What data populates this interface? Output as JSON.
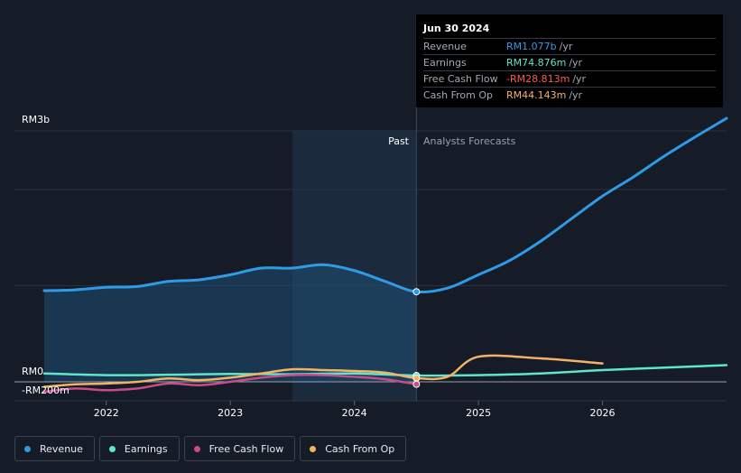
{
  "tooltip": {
    "date": "Jun 30 2024",
    "rows": [
      {
        "label": "Revenue",
        "value": "RM1.077b",
        "unit": "/yr",
        "color": "#2f9be6"
      },
      {
        "label": "Earnings",
        "value": "RM74.876m",
        "unit": "/yr",
        "color": "#5ee6c8"
      },
      {
        "label": "Free Cash Flow",
        "value": "-RM28.813m",
        "unit": "/yr",
        "color": "#ff5a4f"
      },
      {
        "label": "Cash From Op",
        "value": "RM44.143m",
        "unit": "/yr",
        "color": "#f2b366"
      }
    ]
  },
  "regions": {
    "past": "Past",
    "forecast": "Analysts Forecasts"
  },
  "legend": [
    {
      "label": "Revenue",
      "color": "#2f9be6"
    },
    {
      "label": "Earnings",
      "color": "#5ee6c8"
    },
    {
      "label": "Free Cash Flow",
      "color": "#c94b8a"
    },
    {
      "label": "Cash From Op",
      "color": "#f2b366"
    }
  ],
  "chart_data": {
    "type": "line",
    "unit": "RM billions",
    "y_axis_labels": {
      "top": "RM3b",
      "zero": "RM0",
      "bottom": "-RM200m"
    },
    "ylim": [
      -0.2,
      3.0
    ],
    "xlim": [
      2021.5,
      2027.0
    ],
    "x_ticks": [
      {
        "value": 2022.0,
        "label": "2022"
      },
      {
        "value": 2023.0,
        "label": "2023"
      },
      {
        "value": 2024.0,
        "label": "2024"
      },
      {
        "value": 2025.0,
        "label": "2025"
      },
      {
        "value": 2026.0,
        "label": "2026"
      }
    ],
    "grid_lines": [
      0,
      1.15,
      2.3,
      3.0
    ],
    "past_start": 2023.5,
    "forecast_start": 2024.5,
    "highlight_x": 2024.5,
    "series": [
      {
        "name": "Revenue",
        "color": "#2f9be6",
        "fill": true,
        "highlight_y": 1.077,
        "x": [
          2021.5,
          2021.75,
          2022.0,
          2022.25,
          2022.5,
          2022.75,
          2023.0,
          2023.25,
          2023.5,
          2023.75,
          2024.0,
          2024.25,
          2024.5,
          2024.75,
          2025.0,
          2025.25,
          2025.5,
          2025.75,
          2026.0,
          2026.25,
          2026.5,
          2026.75,
          2027.0
        ],
        "y": [
          1.09,
          1.1,
          1.13,
          1.14,
          1.2,
          1.22,
          1.28,
          1.36,
          1.36,
          1.4,
          1.33,
          1.2,
          1.077,
          1.12,
          1.28,
          1.45,
          1.68,
          1.95,
          2.22,
          2.45,
          2.7,
          2.93,
          3.15
        ]
      },
      {
        "name": "Earnings",
        "color": "#5ee6c8",
        "highlight_y": 0.075,
        "x": [
          2021.5,
          2022.0,
          2022.5,
          2023.0,
          2023.5,
          2024.0,
          2024.5,
          2025.0,
          2025.5,
          2026.0,
          2026.5,
          2027.0
        ],
        "y": [
          0.1,
          0.08,
          0.085,
          0.095,
          0.09,
          0.1,
          0.075,
          0.08,
          0.1,
          0.14,
          0.17,
          0.2
        ]
      },
      {
        "name": "Free Cash Flow",
        "color": "#c94b8a",
        "highlight_y": -0.029,
        "x": [
          2021.5,
          2021.75,
          2022.0,
          2022.25,
          2022.5,
          2022.75,
          2023.0,
          2023.25,
          2023.5,
          2023.75,
          2024.0,
          2024.25,
          2024.5
        ],
        "y": [
          -0.12,
          -0.08,
          -0.1,
          -0.08,
          -0.02,
          -0.04,
          0.0,
          0.05,
          0.08,
          0.08,
          0.06,
          0.03,
          -0.029
        ]
      },
      {
        "name": "Cash From Op",
        "color": "#f2b366",
        "highlight_y": 0.044,
        "x": [
          2021.5,
          2021.75,
          2022.0,
          2022.25,
          2022.5,
          2022.75,
          2023.0,
          2023.25,
          2023.5,
          2023.75,
          2024.0,
          2024.25,
          2024.5,
          2024.75,
          2025.0,
          2025.5,
          2026.0
        ],
        "y": [
          -0.06,
          -0.03,
          -0.02,
          0.0,
          0.04,
          0.02,
          0.05,
          0.1,
          0.15,
          0.14,
          0.13,
          0.11,
          0.044,
          0.06,
          0.3,
          0.28,
          0.22
        ]
      }
    ]
  }
}
